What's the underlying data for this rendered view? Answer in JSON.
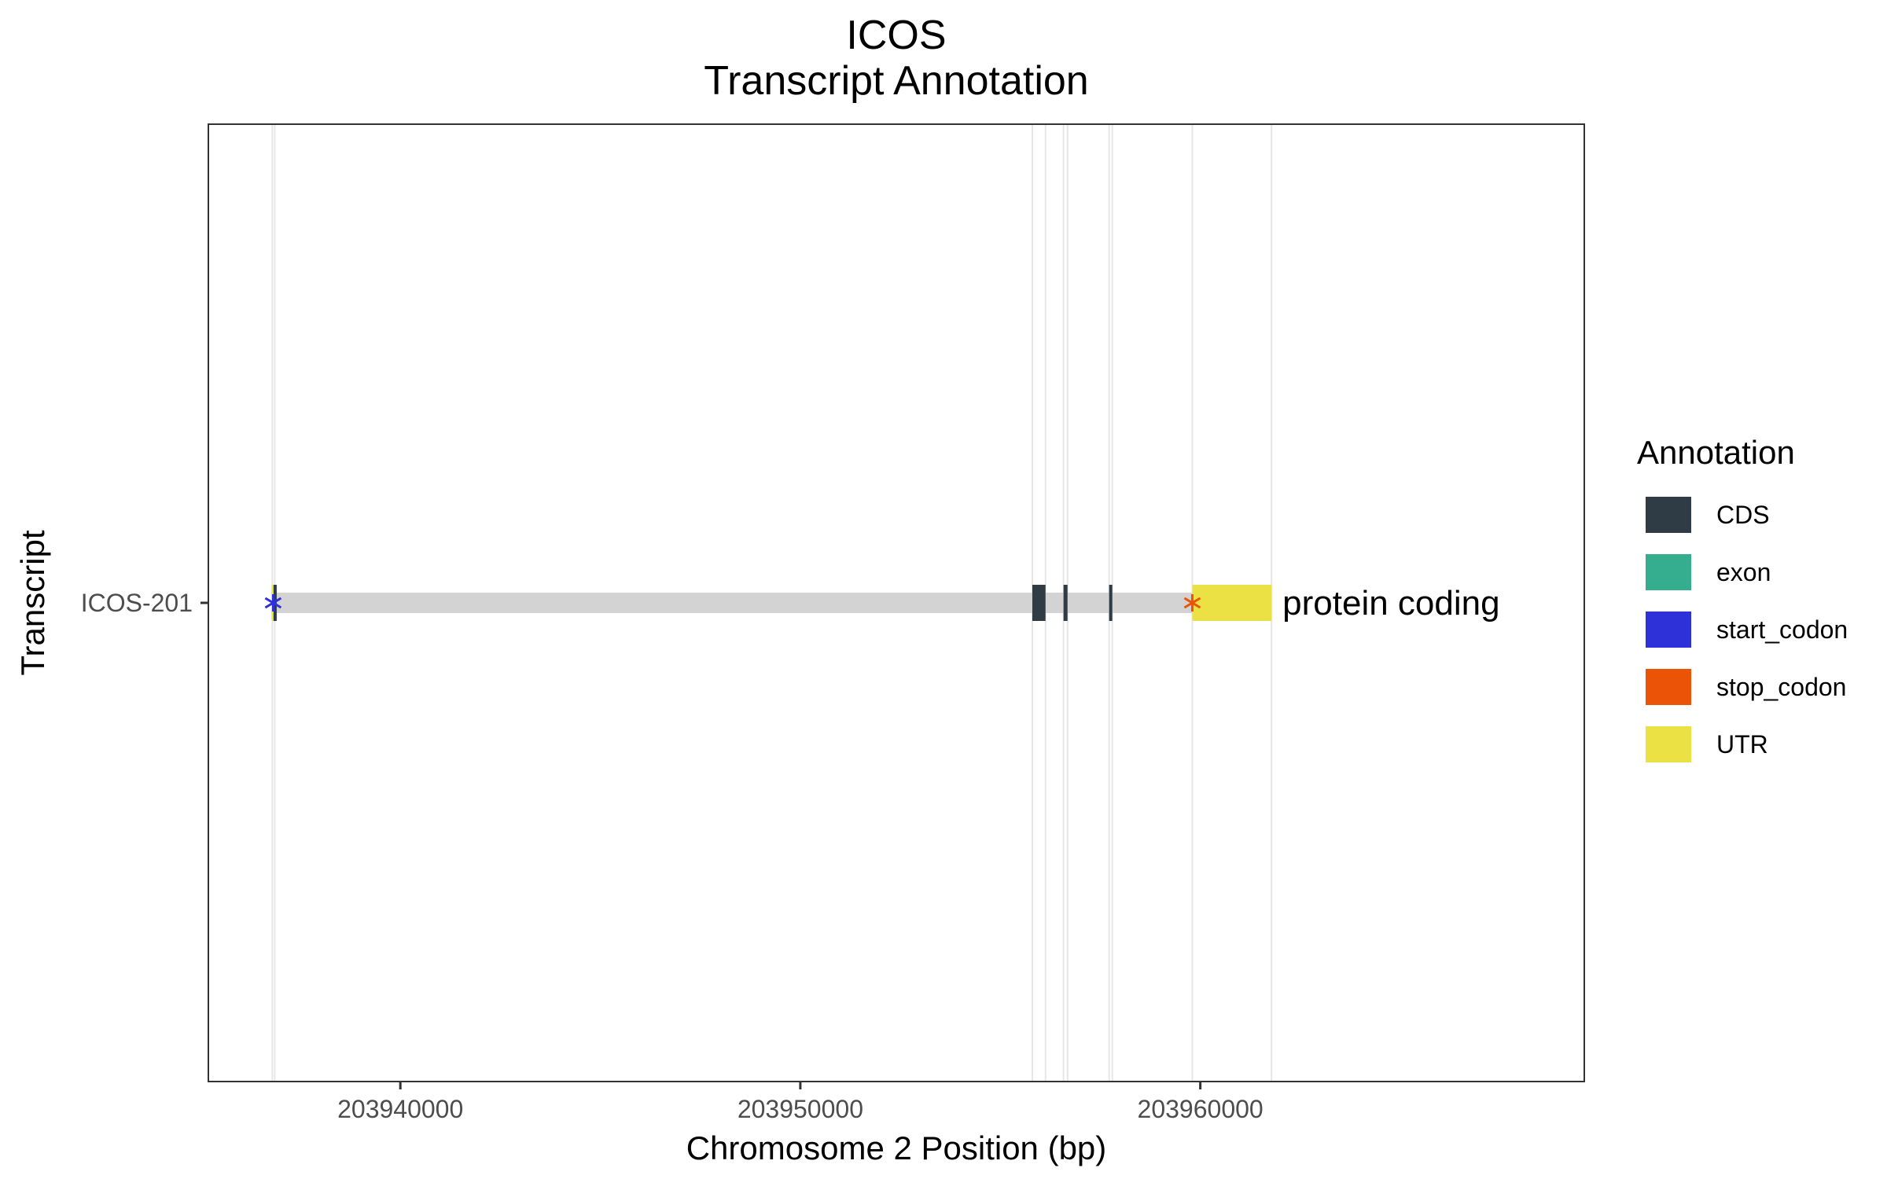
{
  "chart_data": {
    "type": "gene-structure",
    "title": "ICOS",
    "subtitle": "Transcript Annotation",
    "xlabel": "Chromosome 2 Position (bp)",
    "ylabel": "Transcript",
    "xlim": [
      203935200,
      203969600
    ],
    "x_ticks": [
      203940000,
      203950000,
      203960000
    ],
    "x_tick_labels": [
      "203940000",
      "203950000",
      "203960000"
    ],
    "transcripts": [
      {
        "name": "ICOS-201",
        "biotype_label": "protein coding",
        "intron_range": [
          203936800,
          203959800
        ],
        "features": [
          {
            "type": "UTR",
            "start": 203936780,
            "end": 203936830
          },
          {
            "type": "CDS",
            "start": 203936830,
            "end": 203936880
          },
          {
            "type": "CDS",
            "start": 203955800,
            "end": 203956130
          },
          {
            "type": "CDS",
            "start": 203956580,
            "end": 203956680
          },
          {
            "type": "CDS",
            "start": 203957720,
            "end": 203957800
          },
          {
            "type": "UTR",
            "start": 203959800,
            "end": 203961780
          }
        ],
        "start_codon": 203936820,
        "stop_codon": 203959800
      }
    ],
    "boundary_lines": [
      203936800,
      203936860,
      203955800,
      203956130,
      203956580,
      203956680,
      203957720,
      203957800,
      203959800,
      203961780
    ],
    "legend": {
      "title": "Annotation",
      "items": [
        {
          "label": "CDS",
          "color": "#2f3b45"
        },
        {
          "label": "exon",
          "color": "#35ad8f"
        },
        {
          "label": "start_codon",
          "color": "#2e30d8"
        },
        {
          "label": "stop_codon",
          "color": "#eb5407"
        },
        {
          "label": "UTR",
          "color": "#ebe144"
        }
      ]
    },
    "colors": {
      "intron": "#d3d3d3",
      "boundary": "#e6e6e6",
      "panel_border": "#333333"
    }
  }
}
